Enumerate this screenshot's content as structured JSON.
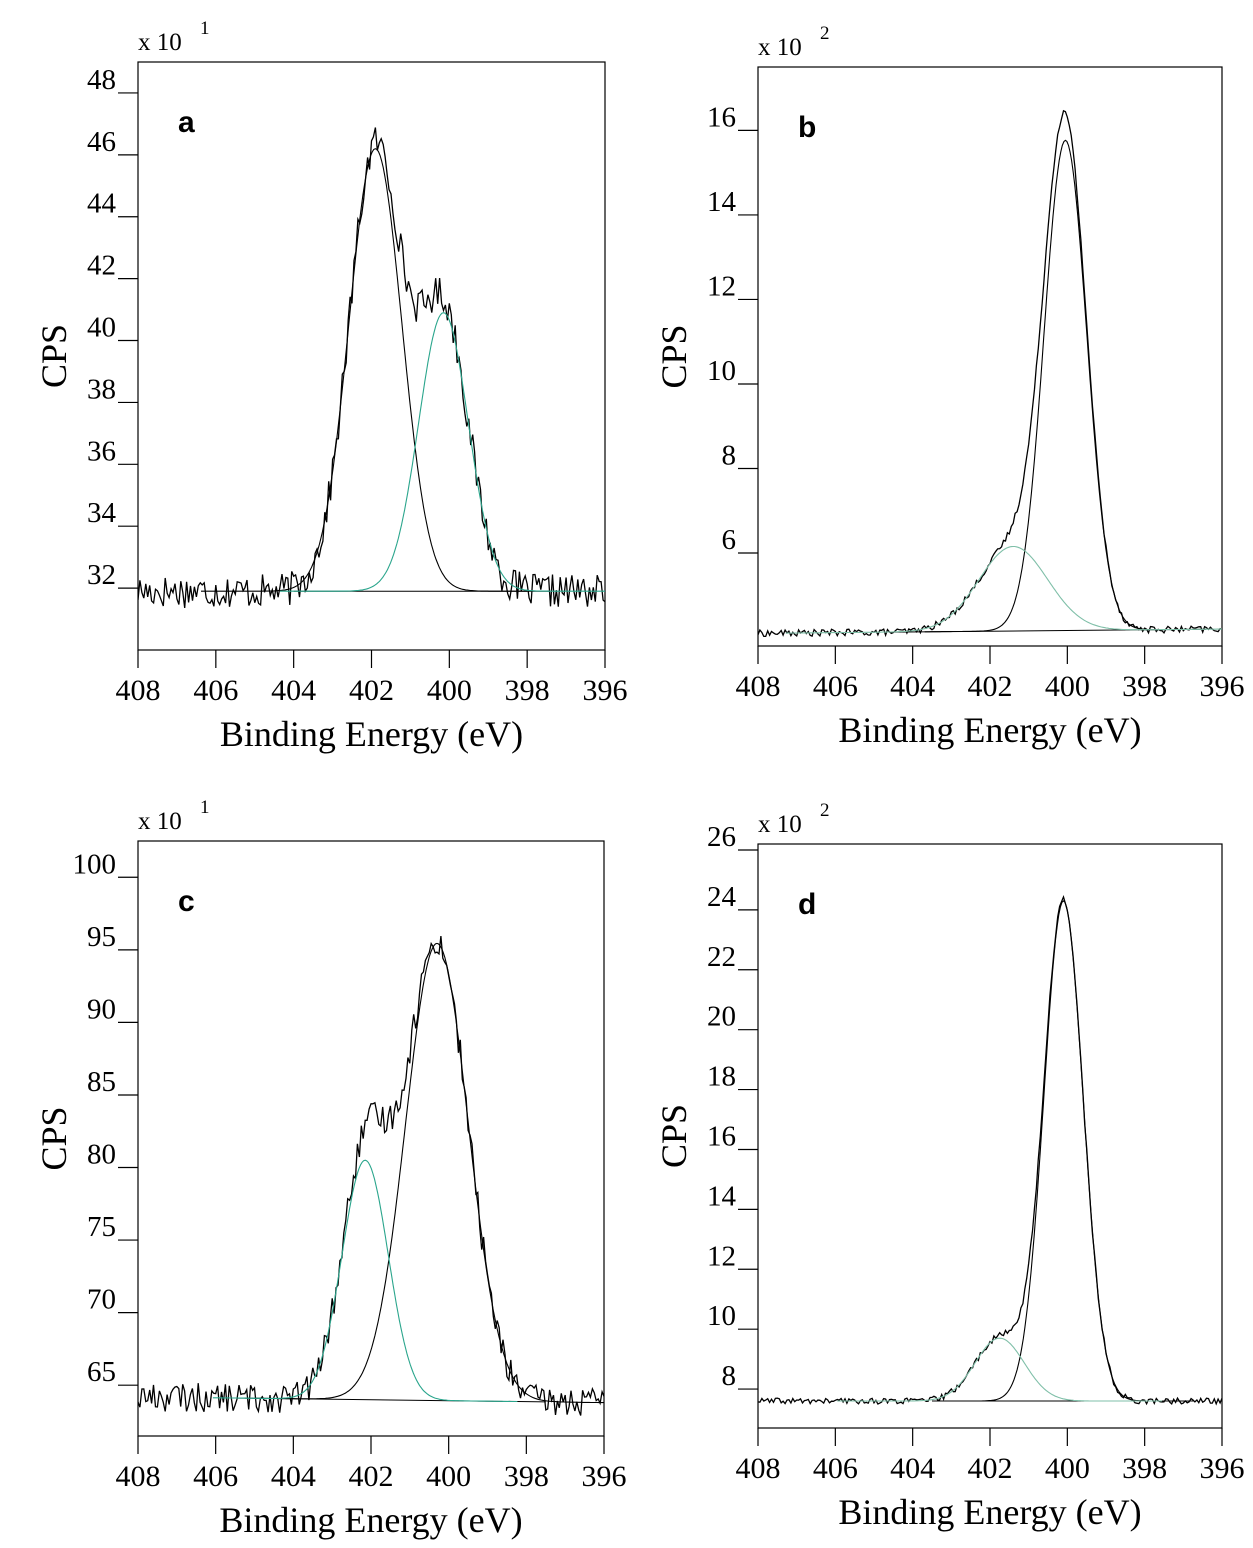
{
  "chart_data": [
    {
      "type": "line",
      "panel_label": "a",
      "scale_label": "x 10",
      "scale_exponent": "1",
      "xlabel": "Binding Energy (eV)",
      "ylabel": "CPS",
      "xlim": [
        408,
        396
      ],
      "ylim": [
        30,
        49
      ],
      "x_ticks": [
        408,
        406,
        404,
        402,
        400,
        398,
        396
      ],
      "y_ticks": [
        32,
        34,
        36,
        38,
        40,
        42,
        44,
        46,
        48
      ],
      "noise_amplitude": 0.55,
      "baseline_left": 31.9,
      "baseline_right": 31.9,
      "baseline_start": 404,
      "baseline_end": 398,
      "series": [
        {
          "role": "fit",
          "center": 401.9,
          "amplitude": 14.3,
          "fwhm": 1.6,
          "color": "#000000"
        },
        {
          "role": "fit",
          "center": 400.15,
          "amplitude": 9.0,
          "fwhm": 1.5,
          "color": "#2aa58c"
        }
      ],
      "grid": false
    },
    {
      "type": "line",
      "panel_label": "b",
      "scale_label": "x 10",
      "scale_exponent": "2",
      "xlabel": "Binding Energy (eV)",
      "ylabel": "CPS",
      "xlim": [
        408,
        396
      ],
      "ylim": [
        3.8,
        17.5
      ],
      "x_ticks": [
        408,
        406,
        404,
        402,
        400,
        398,
        396
      ],
      "y_ticks": [
        6,
        8,
        10,
        12,
        14,
        16
      ],
      "noise_amplitude": 0.08,
      "baseline_left": 4.1,
      "baseline_right": 4.2,
      "baseline_start": 404.5,
      "baseline_end": 397.5,
      "series": [
        {
          "role": "fit",
          "center": 400.05,
          "amplitude": 11.6,
          "fwhm": 1.3,
          "color": "#000000"
        },
        {
          "role": "fit",
          "center": 401.4,
          "amplitude": 2.0,
          "fwhm": 2.1,
          "color": "#7fbfa8"
        }
      ],
      "grid": false
    },
    {
      "type": "line",
      "panel_label": "c",
      "scale_label": "x 10",
      "scale_exponent": "1",
      "xlabel": "Binding Energy (eV)",
      "ylabel": "CPS",
      "xlim": [
        408,
        396
      ],
      "ylim": [
        61.5,
        102.5
      ],
      "x_ticks": [
        408,
        406,
        404,
        402,
        400,
        398,
        396
      ],
      "y_ticks": [
        65,
        70,
        75,
        80,
        85,
        90,
        95,
        100
      ],
      "noise_amplitude": 1.0,
      "baseline_left": 64.2,
      "baseline_right": 63.8,
      "baseline_start": 405,
      "baseline_end": 397.5,
      "series": [
        {
          "role": "fit",
          "center": 400.3,
          "amplitude": 31.5,
          "fwhm": 1.9,
          "color": "#000000"
        },
        {
          "role": "fit",
          "center": 402.15,
          "amplitude": 16.5,
          "fwhm": 1.4,
          "color": "#2aa58c"
        }
      ],
      "grid": false
    },
    {
      "type": "line",
      "panel_label": "d",
      "scale_label": "x 10",
      "scale_exponent": "2",
      "xlabel": "Binding Energy (eV)",
      "ylabel": "CPS",
      "xlim": [
        408,
        396
      ],
      "ylim": [
        6.7,
        26.2
      ],
      "x_ticks": [
        408,
        406,
        404,
        402,
        400,
        398,
        396
      ],
      "y_ticks": [
        8,
        10,
        12,
        14,
        16,
        18,
        20,
        22,
        24,
        26
      ],
      "noise_amplitude": 0.1,
      "baseline_left": 7.6,
      "baseline_right": 7.6,
      "baseline_start": 403.5,
      "baseline_end": 397.5,
      "series": [
        {
          "role": "fit",
          "center": 400.1,
          "amplitude": 16.7,
          "fwhm": 1.2,
          "color": "#000000"
        },
        {
          "role": "fit",
          "center": 401.75,
          "amplitude": 2.1,
          "fwhm": 1.5,
          "color": "#7fbfa8"
        }
      ],
      "grid": false
    }
  ]
}
